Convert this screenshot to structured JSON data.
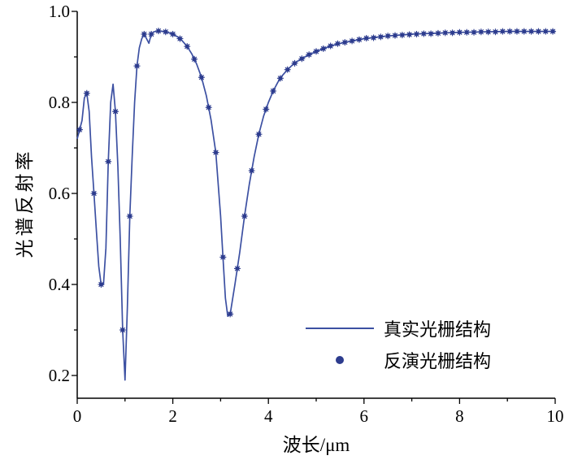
{
  "figure": {
    "background": "#ffffff",
    "line_color": "#3c50a2",
    "marker_color": "#2d3c8e",
    "axis_color": "#000000"
  },
  "axes": {
    "x": {
      "label": "波长/μm",
      "min": 0,
      "max": 10,
      "major_ticks": [
        0,
        2,
        4,
        6,
        8,
        10
      ],
      "tick_labels": [
        "0",
        "2",
        "4",
        "6",
        "8",
        "10"
      ],
      "minor_ticks": [
        1,
        3,
        5,
        7,
        9
      ]
    },
    "y": {
      "label": "光谱反射率",
      "min": 0.15,
      "max": 1.0,
      "major_ticks": [
        0.2,
        0.4,
        0.6,
        0.8,
        1.0
      ],
      "tick_labels": [
        "0.2",
        "0.4",
        "0.6",
        "0.8",
        "1.0"
      ],
      "minor_ticks": [
        0.3,
        0.5,
        0.7,
        0.9
      ]
    }
  },
  "legend": {
    "items": [
      {
        "label": "真实光栅结构",
        "type": "line"
      },
      {
        "label": "反演光栅结构",
        "type": "marker"
      }
    ]
  },
  "chart_data": {
    "type": "line",
    "title": "",
    "xlabel": "波长/μm",
    "ylabel": "光谱反射率",
    "xlim": [
      0,
      10
    ],
    "ylim": [
      0.15,
      1.0
    ],
    "grid": false,
    "legend_position": "lower right",
    "series": [
      {
        "name": "真实光栅结构",
        "type": "line",
        "x": [
          0,
          0.1,
          0.15,
          0.2,
          0.25,
          0.3,
          0.35,
          0.4,
          0.45,
          0.5,
          0.55,
          0.6,
          0.65,
          0.7,
          0.75,
          0.8,
          0.85,
          0.9,
          0.95,
          1.0,
          1.05,
          1.1,
          1.15,
          1.2,
          1.25,
          1.3,
          1.35,
          1.4,
          1.45,
          1.5,
          1.55,
          1.6,
          1.7,
          1.8,
          1.9,
          2.0,
          2.1,
          2.2,
          2.3,
          2.4,
          2.5,
          2.6,
          2.7,
          2.8,
          2.9,
          3.0,
          3.05,
          3.1,
          3.15,
          3.2,
          3.3,
          3.4,
          3.5,
          3.6,
          3.7,
          3.8,
          3.9,
          4.0,
          4.1,
          4.2,
          4.3,
          4.4,
          4.5,
          4.6,
          4.8,
          5.0,
          5.2,
          5.4,
          5.6,
          5.8,
          6.0,
          6.5,
          7.0,
          7.5,
          8.0,
          8.5,
          9.0,
          9.5,
          10.0
        ],
        "y": [
          0.72,
          0.76,
          0.81,
          0.82,
          0.78,
          0.68,
          0.6,
          0.52,
          0.44,
          0.4,
          0.4,
          0.48,
          0.67,
          0.8,
          0.84,
          0.78,
          0.66,
          0.5,
          0.3,
          0.19,
          0.35,
          0.55,
          0.68,
          0.8,
          0.88,
          0.92,
          0.94,
          0.95,
          0.94,
          0.93,
          0.95,
          0.955,
          0.957,
          0.956,
          0.954,
          0.95,
          0.944,
          0.935,
          0.923,
          0.906,
          0.884,
          0.855,
          0.815,
          0.762,
          0.69,
          0.55,
          0.46,
          0.37,
          0.33,
          0.335,
          0.4,
          0.47,
          0.55,
          0.62,
          0.68,
          0.73,
          0.77,
          0.8,
          0.825,
          0.845,
          0.86,
          0.872,
          0.882,
          0.89,
          0.902,
          0.912,
          0.92,
          0.927,
          0.932,
          0.936,
          0.94,
          0.946,
          0.95,
          0.952,
          0.954,
          0.955,
          0.956,
          0.956,
          0.956
        ]
      },
      {
        "name": "反演光栅结构",
        "type": "scatter",
        "x": [
          0.05,
          0.2,
          0.35,
          0.5,
          0.65,
          0.8,
          0.95,
          1.1,
          1.25,
          1.4,
          1.55,
          1.7,
          1.85,
          2.0,
          2.15,
          2.3,
          2.45,
          2.6,
          2.75,
          2.9,
          3.05,
          3.2,
          3.35,
          3.5,
          3.65,
          3.8,
          3.95,
          4.1,
          4.25,
          4.4,
          4.55,
          4.7,
          4.85,
          5.0,
          5.15,
          5.3,
          5.45,
          5.6,
          5.75,
          5.9,
          6.05,
          6.2,
          6.35,
          6.5,
          6.65,
          6.8,
          6.95,
          7.1,
          7.25,
          7.4,
          7.55,
          7.7,
          7.85,
          8.0,
          8.15,
          8.3,
          8.45,
          8.6,
          8.75,
          8.9,
          9.05,
          9.2,
          9.35,
          9.5,
          9.65,
          9.8,
          9.95
        ],
        "y": [
          0.74,
          0.82,
          0.6,
          0.4,
          0.67,
          0.78,
          0.3,
          0.55,
          0.88,
          0.95,
          0.95,
          0.957,
          0.955,
          0.95,
          0.94,
          0.923,
          0.895,
          0.855,
          0.789,
          0.69,
          0.46,
          0.335,
          0.435,
          0.55,
          0.65,
          0.73,
          0.785,
          0.825,
          0.853,
          0.872,
          0.886,
          0.896,
          0.905,
          0.912,
          0.918,
          0.924,
          0.929,
          0.932,
          0.935,
          0.938,
          0.941,
          0.942,
          0.944,
          0.946,
          0.947,
          0.948,
          0.949,
          0.95,
          0.951,
          0.951,
          0.952,
          0.953,
          0.953,
          0.954,
          0.954,
          0.954,
          0.955,
          0.955,
          0.955,
          0.956,
          0.956,
          0.956,
          0.956,
          0.956,
          0.956,
          0.956,
          0.956
        ]
      }
    ]
  }
}
